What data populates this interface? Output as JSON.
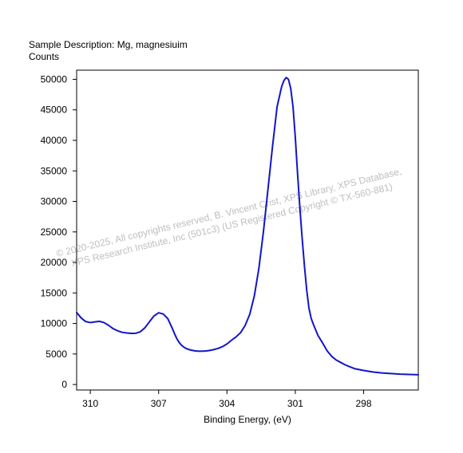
{
  "chart_data": {
    "type": "line",
    "header": "Sample Description:  Mg, magnesiuim",
    "ylabel": "Counts",
    "xlabel": "Binding Energy, (eV)",
    "xlim": [
      310.6,
      295.6
    ],
    "ylim": [
      -900,
      51500
    ],
    "x_reversed": true,
    "grid": false,
    "x_ticks": [
      310,
      307,
      304,
      301,
      298
    ],
    "y_ticks": [
      0,
      5000,
      10000,
      15000,
      20000,
      25000,
      30000,
      35000,
      40000,
      45000,
      50000
    ],
    "line_color": "#1414c8",
    "series": [
      {
        "x": [
          310.6,
          310.4,
          310.2,
          310.0,
          309.8,
          309.6,
          309.4,
          309.2,
          309.0,
          308.8,
          308.6,
          308.4,
          308.2,
          308.0,
          307.8,
          307.6,
          307.4,
          307.2,
          307.0,
          306.8,
          306.6,
          306.4,
          306.3,
          306.2,
          306.1,
          306.0,
          305.9,
          305.8,
          305.6,
          305.4,
          305.2,
          305.0,
          304.8,
          304.6,
          304.4,
          304.2,
          304.0,
          303.8,
          303.6,
          303.4,
          303.2,
          303.0,
          302.8,
          302.6,
          302.4,
          302.2,
          302.0,
          301.8,
          301.6,
          301.5,
          301.4,
          301.3,
          301.2,
          301.1,
          301.05,
          301.0,
          300.95,
          300.9,
          300.8,
          300.7,
          300.6,
          300.5,
          300.4,
          300.3,
          300.2,
          300.0,
          299.8,
          299.6,
          299.4,
          299.2,
          299.0,
          298.8,
          298.6,
          298.4,
          298.0,
          297.6,
          297.2,
          296.8,
          296.4,
          296.0,
          295.6
        ],
        "y": [
          11800,
          10900,
          10300,
          10150,
          10250,
          10350,
          10150,
          9700,
          9150,
          8800,
          8550,
          8450,
          8380,
          8400,
          8650,
          9300,
          10300,
          11250,
          11750,
          11550,
          10800,
          9200,
          8300,
          7500,
          6900,
          6450,
          6150,
          5900,
          5650,
          5500,
          5450,
          5470,
          5550,
          5700,
          5900,
          6200,
          6650,
          7250,
          7800,
          8500,
          9700,
          11500,
          14500,
          19000,
          25000,
          32000,
          39000,
          45500,
          48800,
          49800,
          50300,
          50000,
          48500,
          45500,
          43000,
          40500,
          37500,
          34500,
          29000,
          24000,
          19500,
          15500,
          12500,
          10800,
          9800,
          8000,
          6800,
          5500,
          4600,
          4000,
          3600,
          3200,
          2900,
          2600,
          2300,
          2050,
          1900,
          1800,
          1700,
          1650,
          1600
        ]
      }
    ]
  },
  "watermark": {
    "line1": "© 2020-2025,  All copyrights reserved,   B. Vincent Crist,   XPS Library, XPS Database,",
    "line2": "XPS Research Institute, Inc (501c3)   (US Registered Copyright © TX-560-881)"
  }
}
